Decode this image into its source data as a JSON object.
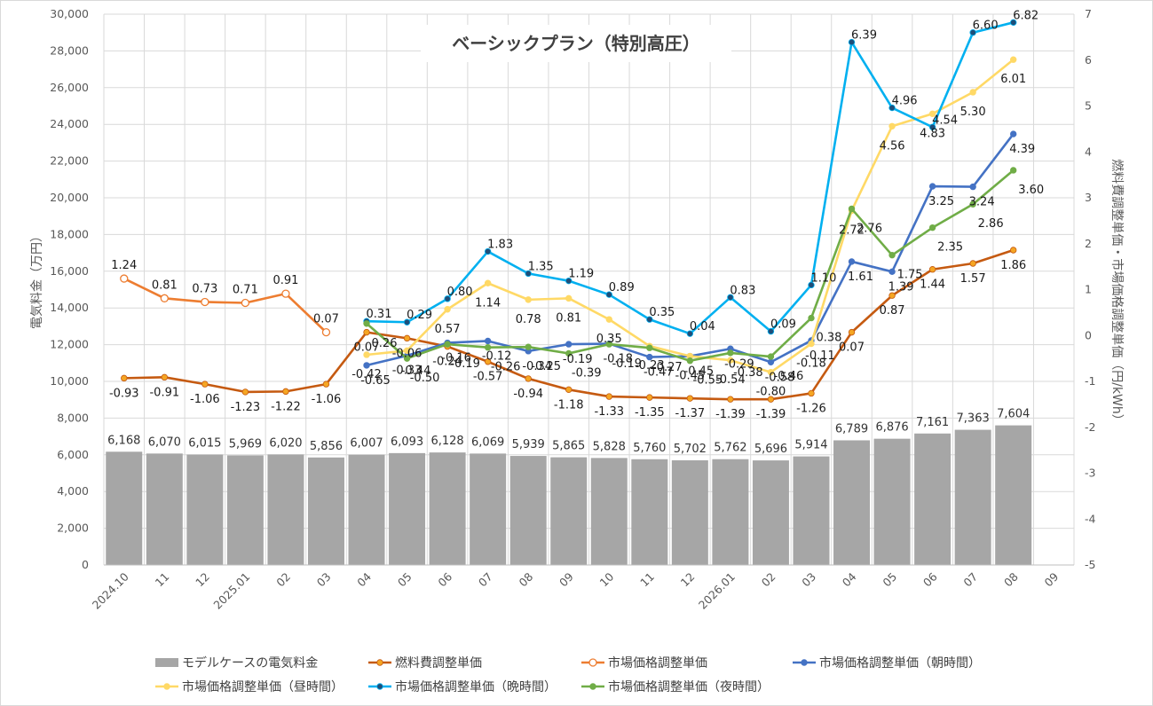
{
  "chart_data": {
    "type": "bar+line",
    "title": "ベーシックプラン（特別高圧）",
    "y_left_label": "電気料金（万円）",
    "y_right_label": "燃料費調整単価・市場価格調整単価（円/kWh）",
    "y_left_range": [
      0,
      30000
    ],
    "y_left_ticks": [
      "0",
      "2,000",
      "4,000",
      "6,000",
      "8,000",
      "10,000",
      "12,000",
      "14,000",
      "16,000",
      "18,000",
      "20,000",
      "22,000",
      "24,000",
      "26,000",
      "28,000",
      "30,000"
    ],
    "y_right_range": [
      -5,
      7
    ],
    "y_right_ticks": [
      "-5",
      "-4",
      "-3",
      "-2",
      "-1",
      "0",
      "1",
      "2",
      "3",
      "4",
      "5",
      "6",
      "7"
    ],
    "categories": [
      "2024.10",
      "11",
      "12",
      "2025.01",
      "02",
      "03",
      "04",
      "05",
      "06",
      "07",
      "08",
      "09",
      "10",
      "11",
      "12",
      "2026.01",
      "02",
      "03",
      "04",
      "05",
      "06",
      "07",
      "08",
      "09"
    ],
    "grid": true,
    "legend_position": "bottom",
    "bars": {
      "name": "モデルケースの電気料金",
      "color": "#a6a6a6",
      "values": [
        6168,
        6070,
        6015,
        5969,
        6020,
        5856,
        6007,
        6093,
        6128,
        6069,
        5939,
        5865,
        5828,
        5760,
        5702,
        5762,
        5696,
        5914,
        6789,
        6876,
        7161,
        7363,
        7604,
        null
      ],
      "labels": [
        "6,168",
        "6,070",
        "6,015",
        "5,969",
        "6,020",
        "5,856",
        "6,007",
        "6,093",
        "6,128",
        "6,069",
        "5,939",
        "5,865",
        "5,828",
        "5,760",
        "5,702",
        "5,762",
        "5,696",
        "5,914",
        "6,789",
        "6,876",
        "7,161",
        "7,363",
        "7,604",
        ""
      ]
    },
    "series": [
      {
        "name": "燃料費調整単価",
        "color": "#c55a11",
        "marker": "#f5a623",
        "hollow": false,
        "values": [
          -0.93,
          -0.91,
          -1.06,
          -1.23,
          -1.22,
          -1.06,
          0.07,
          -0.06,
          -0.24,
          -0.57,
          -0.94,
          -1.18,
          -1.33,
          -1.35,
          -1.37,
          -1.39,
          -1.39,
          -1.26,
          0.07,
          0.87,
          1.44,
          1.57,
          1.86,
          null
        ]
      },
      {
        "name": "市場価格調整単価",
        "color": "#ed7d31",
        "marker": "#ffffff",
        "hollow": true,
        "values": [
          1.24,
          0.81,
          0.73,
          0.71,
          0.91,
          0.07,
          null,
          null,
          null,
          null,
          null,
          null,
          null,
          null,
          null,
          null,
          null,
          null,
          null,
          null,
          null,
          null,
          null,
          null
        ]
      },
      {
        "name": "市場価格調整単価（朝時間）",
        "color": "#4472c4",
        "marker": "#4472c4",
        "hollow": false,
        "values": [
          null,
          null,
          null,
          null,
          null,
          null,
          -0.65,
          -0.44,
          -0.16,
          -0.12,
          -0.34,
          -0.19,
          -0.18,
          -0.47,
          -0.45,
          -0.29,
          -0.58,
          -0.11,
          1.61,
          1.39,
          3.25,
          3.24,
          4.39,
          null
        ]
      },
      {
        "name": "市場価格調整単価（昼時間）",
        "color": "#ffd966",
        "marker": "#ffd966",
        "hollow": false,
        "values": [
          null,
          null,
          null,
          null,
          null,
          null,
          -0.42,
          -0.33,
          0.57,
          1.14,
          0.78,
          0.81,
          0.35,
          -0.23,
          -0.45,
          -0.54,
          -0.8,
          -0.18,
          2.72,
          4.56,
          4.83,
          5.3,
          6.01,
          null
        ]
      },
      {
        "name": "市場価格調整単価（晩時間）",
        "color": "#00b0f0",
        "marker": "#1f4e79",
        "hollow": false,
        "values": [
          null,
          null,
          null,
          null,
          null,
          null,
          0.31,
          0.29,
          0.8,
          1.83,
          1.35,
          1.19,
          0.89,
          0.35,
          0.04,
          0.83,
          0.09,
          1.1,
          6.39,
          4.96,
          4.54,
          6.6,
          6.82,
          null
        ]
      },
      {
        "name": "市場価格調整単価（夜時間）",
        "color": "#70ad47",
        "marker": "#70ad47",
        "hollow": false,
        "values": [
          null,
          null,
          null,
          null,
          null,
          null,
          0.26,
          -0.5,
          -0.19,
          -0.26,
          -0.25,
          -0.39,
          -0.19,
          -0.27,
          -0.55,
          -0.38,
          -0.46,
          0.38,
          2.76,
          1.75,
          2.35,
          2.86,
          3.6,
          null
        ]
      }
    ],
    "line_labels": [
      {
        "series": 0,
        "values": [
          "-0.93",
          "-0.91",
          "-1.06",
          "-1.23",
          "-1.22",
          "-1.06",
          "0.07",
          "-0.06",
          "-0.24",
          "-0.57",
          "-0.94",
          "-1.18",
          "-1.33",
          "-1.35",
          "-1.37",
          "-1.39",
          "-1.39",
          "-1.26",
          "0.07",
          "0.87",
          "1.44",
          "1.57",
          "1.86",
          ""
        ]
      },
      {
        "series": 1,
        "values": [
          "1.24",
          "0.81",
          "0.73",
          "0.71",
          "0.91",
          "0.07",
          "",
          "",
          "",
          "",
          "",
          "",
          "",
          "",
          "",
          "",
          "",
          "",
          "",
          "",
          "",
          "",
          "",
          ""
        ]
      },
      {
        "series": 2,
        "values": [
          "",
          "",
          "",
          "",
          "",
          "",
          "-0.65",
          "-0.44",
          "-0.16",
          "-0.12",
          "-0.34",
          "-0.19",
          "-0.18",
          "-0.47",
          "-0.45",
          "-0.29",
          "-0.58",
          "-0.11",
          "1.61",
          "1.39",
          "3.25",
          "3.24",
          "4.39",
          ""
        ]
      },
      {
        "series": 3,
        "values": [
          "",
          "",
          "",
          "",
          "",
          "",
          "-0.42",
          "-0.33",
          "0.57",
          "1.14",
          "0.78",
          "0.81",
          "0.35",
          "-0.23",
          "-0.45",
          "-0.54",
          "-0.80",
          "-0.18",
          "2.72",
          "4.56",
          "4.83",
          "5.30",
          "6.01",
          ""
        ]
      },
      {
        "series": 4,
        "values": [
          "",
          "",
          "",
          "",
          "",
          "",
          "0.31",
          "0.29",
          "0.80",
          "1.83",
          "1.35",
          "1.19",
          "0.89",
          "0.35",
          "0.04",
          "0.83",
          "0.09",
          "1.10",
          "6.39",
          "4.96",
          "4.54",
          "6.60",
          "6.82",
          ""
        ]
      },
      {
        "series": 5,
        "values": [
          "",
          "",
          "",
          "",
          "",
          "",
          "0.26",
          "-0.50",
          "-0.19",
          "-0.26",
          "-0.25",
          "-0.39",
          "-0.19",
          "-0.27",
          "-0.55",
          "-0.38",
          "-0.46",
          "0.38",
          "2.76",
          "1.75",
          "2.35",
          "2.86",
          "3.60",
          ""
        ]
      }
    ]
  }
}
